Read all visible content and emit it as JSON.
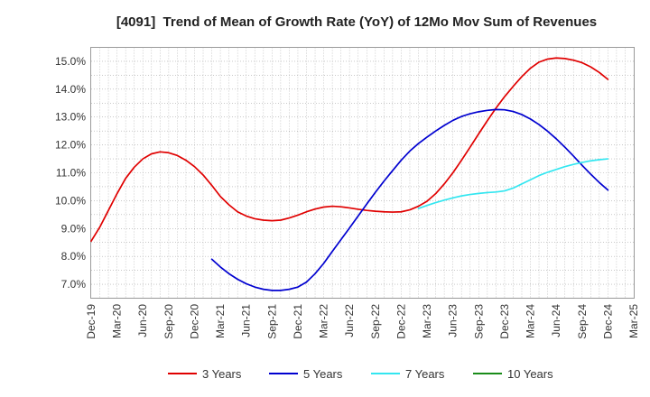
{
  "chart_data": {
    "type": "line",
    "title": "[4091]  Trend of Mean of Growth Rate (YoY) of 12Mo Mov Sum of Revenues",
    "xlabel": "",
    "ylabel": "",
    "legend": "bottom",
    "grid": true,
    "xlim_months": [
      0,
      63
    ],
    "x_tick_step_months": 3,
    "x_ticks": [
      "Dec-19",
      "Mar-20",
      "Jun-20",
      "Sep-20",
      "Dec-20",
      "Mar-21",
      "Jun-21",
      "Sep-21",
      "Dec-21",
      "Mar-22",
      "Jun-22",
      "Sep-22",
      "Dec-22",
      "Mar-23",
      "Jun-23",
      "Sep-23",
      "Dec-23",
      "Mar-24",
      "Jun-24",
      "Sep-24",
      "Dec-24",
      "Mar-25"
    ],
    "ylim": [
      6.5,
      15.5
    ],
    "y_ticks": [
      {
        "value": 7,
        "label": "7.0%"
      },
      {
        "value": 8,
        "label": "8.0%"
      },
      {
        "value": 9,
        "label": "9.0%"
      },
      {
        "value": 10,
        "label": "10.0%"
      },
      {
        "value": 11,
        "label": "11.0%"
      },
      {
        "value": 12,
        "label": "12.0%"
      },
      {
        "value": 13,
        "label": "13.0%"
      },
      {
        "value": 14,
        "label": "14.0%"
      },
      {
        "value": 15,
        "label": "15.0%"
      }
    ],
    "series": [
      {
        "name": "3 Years",
        "color": "#e00000",
        "start_month_index": 0,
        "values": [
          8.55,
          9.05,
          9.65,
          10.25,
          10.8,
          11.2,
          11.5,
          11.68,
          11.75,
          11.72,
          11.62,
          11.45,
          11.22,
          10.92,
          10.55,
          10.15,
          9.85,
          9.6,
          9.45,
          9.35,
          9.3,
          9.28,
          9.3,
          9.38,
          9.48,
          9.6,
          9.7,
          9.77,
          9.8,
          9.78,
          9.74,
          9.69,
          9.65,
          9.62,
          9.6,
          9.59,
          9.6,
          9.67,
          9.8,
          9.98,
          10.25,
          10.6,
          11.0,
          11.45,
          11.92,
          12.4,
          12.87,
          13.32,
          13.73,
          14.1,
          14.45,
          14.75,
          14.97,
          15.08,
          15.12,
          15.1,
          15.04,
          14.95,
          14.8,
          14.6,
          14.35
        ]
      },
      {
        "name": "5 Years",
        "color": "#0000d0",
        "start_month_index": 14,
        "values": [
          7.9,
          7.62,
          7.38,
          7.18,
          7.02,
          6.9,
          6.82,
          6.78,
          6.78,
          6.82,
          6.9,
          7.08,
          7.38,
          7.75,
          8.18,
          8.6,
          9.02,
          9.45,
          9.88,
          10.3,
          10.7,
          11.08,
          11.45,
          11.78,
          12.05,
          12.28,
          12.5,
          12.7,
          12.88,
          13.02,
          13.12,
          13.19,
          13.24,
          13.27,
          13.26,
          13.2,
          13.09,
          12.93,
          12.73,
          12.49,
          12.22,
          11.92,
          11.6,
          11.27,
          10.95,
          10.65,
          10.38
        ]
      },
      {
        "name": "7 Years",
        "color": "#33e6f0",
        "start_month_index": 38,
        "values": [
          9.72,
          9.83,
          9.93,
          10.02,
          10.1,
          10.17,
          10.22,
          10.26,
          10.29,
          10.31,
          10.35,
          10.45,
          10.6,
          10.75,
          10.9,
          11.02,
          11.12,
          11.22,
          11.3,
          11.37,
          11.43,
          11.47,
          11.5
        ]
      },
      {
        "name": "10 Years",
        "color": "#1a8c1a",
        "values": []
      }
    ]
  }
}
